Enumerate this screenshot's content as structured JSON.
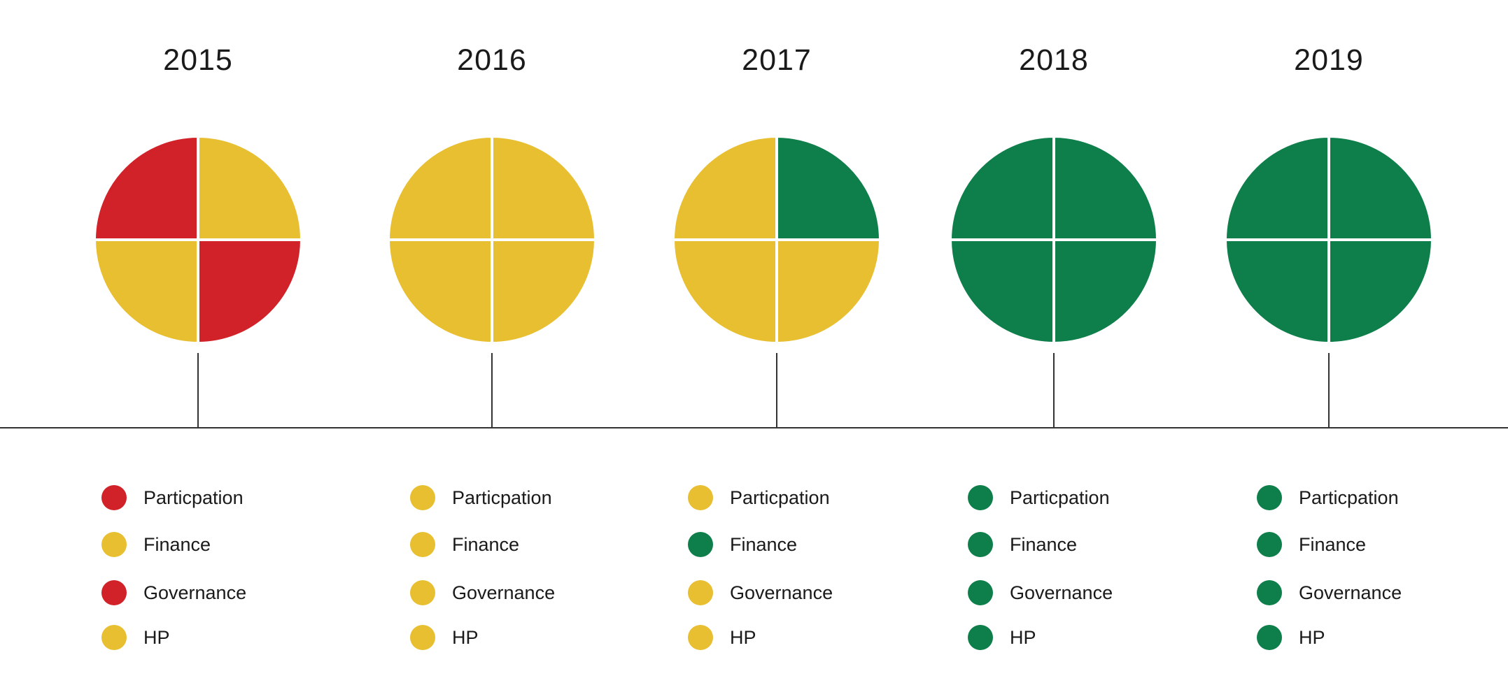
{
  "colors": {
    "red": "#d12229",
    "yellow": "#e8bf30",
    "green": "#0e7f4a",
    "line": "#333333"
  },
  "years": [
    {
      "year": "2015",
      "quadrants": {
        "top_left": "red",
        "top_right": "yellow",
        "bottom_left": "yellow",
        "bottom_right": "red"
      },
      "legend": [
        {
          "label": "Particpation",
          "status": "red"
        },
        {
          "label": "Finance",
          "status": "yellow"
        },
        {
          "label": "Governance",
          "status": "red"
        },
        {
          "label": "HP",
          "status": "yellow"
        }
      ]
    },
    {
      "year": "2016",
      "quadrants": {
        "top_left": "yellow",
        "top_right": "yellow",
        "bottom_left": "yellow",
        "bottom_right": "yellow"
      },
      "legend": [
        {
          "label": "Particpation",
          "status": "yellow"
        },
        {
          "label": "Finance",
          "status": "yellow"
        },
        {
          "label": "Governance",
          "status": "yellow"
        },
        {
          "label": "HP",
          "status": "yellow"
        }
      ]
    },
    {
      "year": "2017",
      "quadrants": {
        "top_left": "yellow",
        "top_right": "green",
        "bottom_left": "yellow",
        "bottom_right": "yellow"
      },
      "legend": [
        {
          "label": "Particpation",
          "status": "yellow"
        },
        {
          "label": "Finance",
          "status": "green"
        },
        {
          "label": "Governance",
          "status": "yellow"
        },
        {
          "label": "HP",
          "status": "yellow"
        }
      ]
    },
    {
      "year": "2018",
      "quadrants": {
        "top_left": "green",
        "top_right": "green",
        "bottom_left": "green",
        "bottom_right": "green"
      },
      "legend": [
        {
          "label": "Particpation",
          "status": "green"
        },
        {
          "label": "Finance",
          "status": "green"
        },
        {
          "label": "Governance",
          "status": "green"
        },
        {
          "label": "HP",
          "status": "green"
        }
      ]
    },
    {
      "year": "2019",
      "quadrants": {
        "top_left": "green",
        "top_right": "green",
        "bottom_left": "green",
        "bottom_right": "green"
      },
      "legend": [
        {
          "label": "Particpation",
          "status": "green"
        },
        {
          "label": "Finance",
          "status": "green"
        },
        {
          "label": "Governance",
          "status": "green"
        },
        {
          "label": "HP",
          "status": "green"
        }
      ]
    }
  ]
}
